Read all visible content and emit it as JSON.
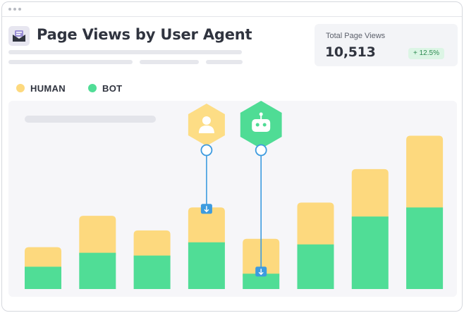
{
  "header": {
    "title": "Page Views by User Agent",
    "icon": "mail-chart-icon"
  },
  "stat": {
    "label": "Total Page Views",
    "value": "10,513",
    "change": "+ 12.5%",
    "change_color": "#2c8a50"
  },
  "legend": [
    {
      "label": "HUMAN",
      "color": "#fdd97e"
    },
    {
      "label": "BOT",
      "color": "#50dd96"
    }
  ],
  "markers": [
    {
      "icon": "user-icon",
      "series": "HUMAN",
      "bar_index": 3,
      "color": "#fddd85"
    },
    {
      "icon": "robot-icon",
      "series": "BOT",
      "bar_index": 4,
      "color": "#4fdc95"
    }
  ],
  "chart_data": {
    "type": "bar",
    "stacked": true,
    "categories": [
      "",
      "",
      "",
      "",
      "",
      "",
      "",
      ""
    ],
    "series": [
      {
        "name": "BOT",
        "color": "#50dd96",
        "values": [
          32,
          52,
          48,
          67,
          22,
          64,
          104,
          117
        ]
      },
      {
        "name": "HUMAN",
        "color": "#fdd97e",
        "values": [
          28,
          53,
          36,
          50,
          50,
          60,
          68,
          103
        ]
      }
    ],
    "ylim": [
      0,
      270
    ],
    "grid": false,
    "legend_position": "top-left",
    "xlabel": "",
    "ylabel": ""
  }
}
